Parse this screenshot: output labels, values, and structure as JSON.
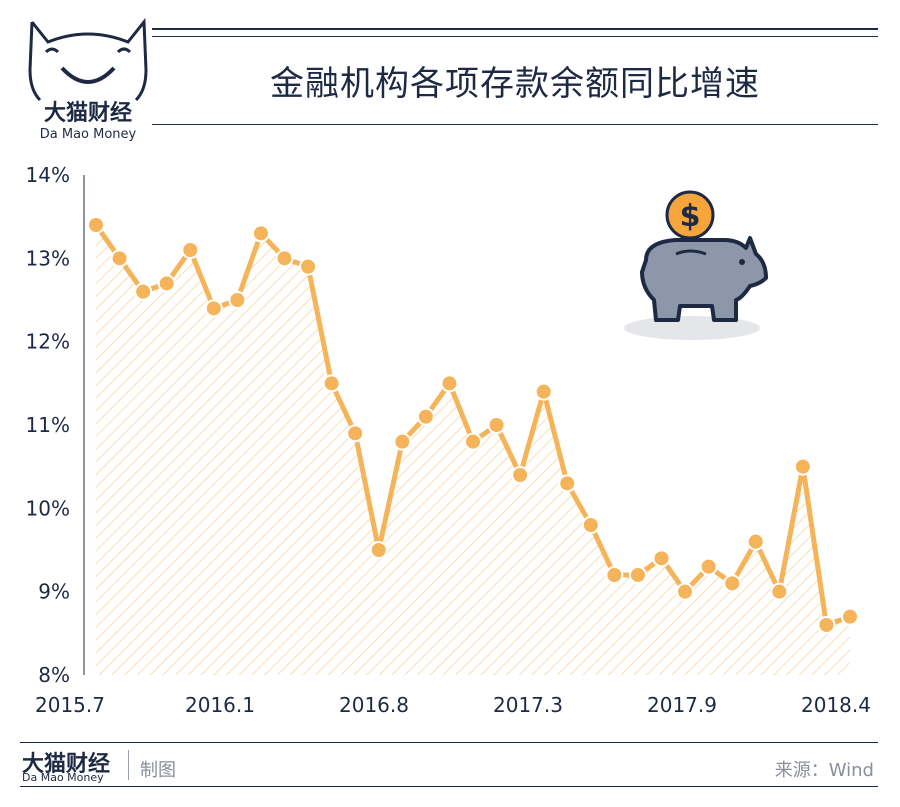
{
  "header": {
    "brand_cn": "大猫财经",
    "brand_en": "Da  Mao Money",
    "title": "金融机构各项存款余额同比增速"
  },
  "footer": {
    "brand_cn": "大猫财经",
    "brand_en": "Da  Mao Money",
    "credit": "制图",
    "source": "来源：Wind"
  },
  "colors": {
    "navy": "#1e2a44",
    "line": "#f5b35a",
    "marker": "#f5b35a",
    "hatch": "#f3d7a3",
    "pig": "#8c97aa",
    "coin": "#f5a53a"
  },
  "chart_data": {
    "type": "line",
    "title": "金融机构各项存款余额同比增速",
    "xlabel": "",
    "ylabel": "",
    "x_tick_labels": [
      "2015.7",
      "2016.1",
      "2016.8",
      "2017.3",
      "2017.9",
      "2018.4"
    ],
    "y_tick_labels": [
      "8%",
      "9%",
      "10%",
      "11%",
      "12%",
      "13%",
      "14%"
    ],
    "ylim": [
      8,
      14
    ],
    "grid": false,
    "area_fill": "hatched",
    "series": [
      {
        "values": [
          13.4,
          13.0,
          12.6,
          12.7,
          13.1,
          12.4,
          12.5,
          13.3,
          13.0,
          12.9,
          11.5,
          10.9,
          9.5,
          10.8,
          11.1,
          11.5,
          10.8,
          11.0,
          10.4,
          11.4,
          10.3,
          9.8,
          9.2,
          9.2,
          9.4,
          9.0,
          9.3,
          9.1,
          9.6,
          9.0,
          10.5,
          8.6,
          8.7
        ]
      }
    ]
  },
  "icons": {
    "logo": "cat-face-icon",
    "illustration": "piggy-bank-icon",
    "coin": "dollar-coin-icon"
  }
}
